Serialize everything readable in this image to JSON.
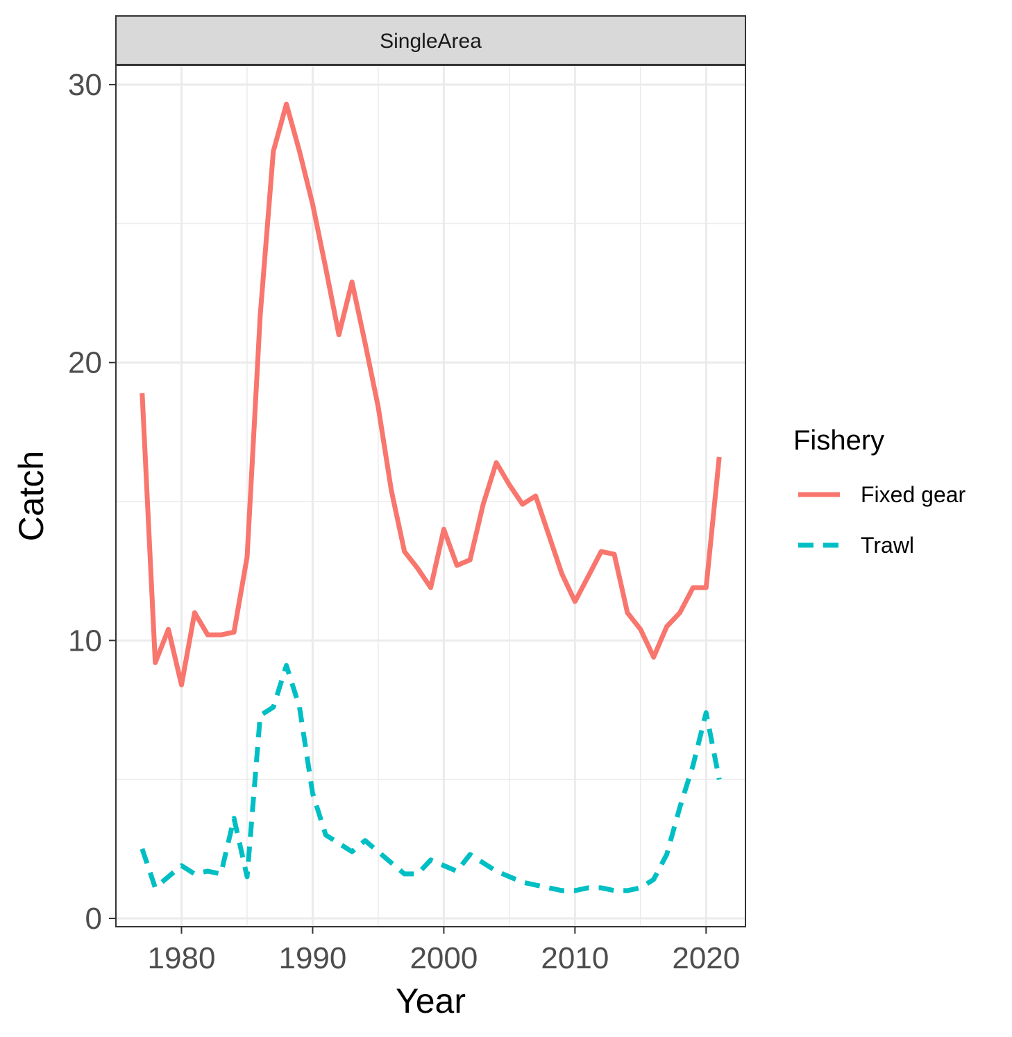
{
  "chart_data": {
    "type": "line",
    "facet_label": "SingleArea",
    "xlabel": "Year",
    "ylabel": "Catch",
    "xlim": [
      1975,
      2023
    ],
    "ylim": [
      -0.3,
      30.7
    ],
    "x_ticks": [
      1980,
      1990,
      2000,
      2010,
      2020
    ],
    "y_ticks": [
      0,
      10,
      20,
      30
    ],
    "grid": true,
    "legend": {
      "title": "Fishery",
      "position": "right"
    },
    "x": [
      1977,
      1978,
      1979,
      1980,
      1981,
      1982,
      1983,
      1984,
      1985,
      1986,
      1987,
      1988,
      1989,
      1990,
      1991,
      1992,
      1993,
      1994,
      1995,
      1996,
      1997,
      1998,
      1999,
      2000,
      2001,
      2002,
      2003,
      2004,
      2005,
      2006,
      2007,
      2008,
      2009,
      2010,
      2011,
      2012,
      2013,
      2014,
      2015,
      2016,
      2017,
      2018,
      2019,
      2020,
      2021
    ],
    "series": [
      {
        "name": "Fixed gear",
        "color": "#F8766D",
        "dash": "solid",
        "values": [
          18.9,
          9.2,
          10.4,
          8.4,
          11.0,
          10.2,
          10.2,
          10.3,
          13.0,
          21.7,
          27.6,
          29.3,
          27.6,
          25.7,
          23.4,
          21.0,
          22.9,
          20.7,
          18.4,
          15.4,
          13.2,
          12.6,
          11.9,
          14.0,
          12.7,
          12.9,
          14.9,
          16.4,
          15.6,
          14.9,
          15.2,
          13.8,
          12.4,
          11.4,
          12.3,
          13.2,
          13.1,
          11.0,
          10.4,
          9.4,
          10.5,
          11.0,
          11.9,
          11.9,
          16.6
        ]
      },
      {
        "name": "Trawl",
        "color": "#00BFC4",
        "dash": "dashed",
        "values": [
          2.5,
          1.1,
          1.5,
          1.9,
          1.6,
          1.7,
          1.6,
          3.6,
          1.5,
          7.3,
          7.6,
          9.1,
          7.6,
          4.5,
          3.0,
          2.7,
          2.4,
          2.8,
          2.4,
          2.0,
          1.6,
          1.6,
          2.1,
          1.9,
          1.7,
          2.3,
          2.0,
          1.7,
          1.5,
          1.3,
          1.2,
          1.1,
          1.0,
          1.0,
          1.1,
          1.1,
          1.0,
          1.0,
          1.1,
          1.4,
          2.3,
          4.0,
          5.5,
          7.4,
          5.0
        ]
      }
    ]
  }
}
